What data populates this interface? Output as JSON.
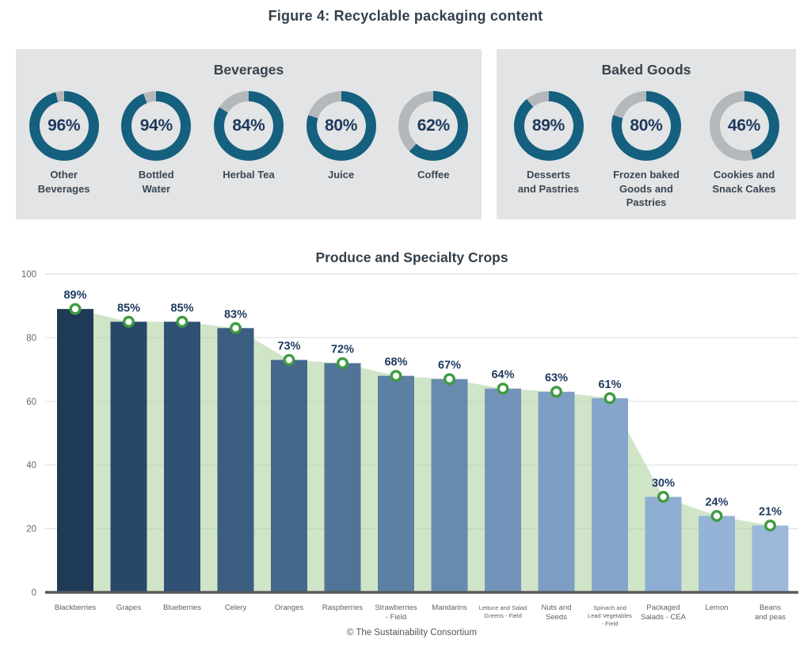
{
  "figure_title": "Figure 4: Recyclable packaging content",
  "footer": "© The Sustainability Consortium",
  "colors": {
    "accent_teal": "#14607E",
    "donut_remainder": "#B5B8BB",
    "panel_bg": "#E3E4E5",
    "navy_text": "#1D3A5E",
    "slate_text": "#37434D",
    "title_text": "#33404C",
    "axis_tick_text": "#64686C",
    "category_text": "#5C6165",
    "grid_line": "#E0E1E2",
    "axis_line": "#58595B",
    "area_green": "#A9CF9B",
    "marker_green": "#3F9B41",
    "footer_text": "#545759",
    "bar_colors": [
      "#1E3A56",
      "#28486A",
      "#2F5174",
      "#3A5D80",
      "#44688C",
      "#507497",
      "#5C80A3",
      "#678BAE",
      "#7394BA",
      "#7D9DC2",
      "#85A5CA",
      "#8EADD2",
      "#95B3D7",
      "#9BB8DB"
    ]
  },
  "chart_data": [
    {
      "type": "pie",
      "subtype": "donut-set",
      "title": "Beverages",
      "unit": "%",
      "items": [
        {
          "label": "Other Beverages",
          "label_lines": [
            "Other",
            "Beverages"
          ],
          "value": 96
        },
        {
          "label": "Bottled Water",
          "label_lines": [
            "Bottled",
            "Water"
          ],
          "value": 94
        },
        {
          "label": "Herbal Tea",
          "label_lines": [
            "Herbal Tea"
          ],
          "value": 84
        },
        {
          "label": "Juice",
          "label_lines": [
            "Juice"
          ],
          "value": 80
        },
        {
          "label": "Coffee",
          "label_lines": [
            "Coffee"
          ],
          "value": 62
        }
      ]
    },
    {
      "type": "pie",
      "subtype": "donut-set",
      "title": "Baked Goods",
      "unit": "%",
      "items": [
        {
          "label": "Desserts and Pastries",
          "label_lines": [
            "Desserts",
            "and Pastries"
          ],
          "value": 89
        },
        {
          "label": "Frozen baked Goods and Pastries",
          "label_lines": [
            "Frozen baked",
            "Goods and",
            "Pastries"
          ],
          "value": 80
        },
        {
          "label": "Cookies and Snack Cakes",
          "label_lines": [
            "Cookies and",
            "Snack Cakes"
          ],
          "value": 46
        }
      ]
    },
    {
      "type": "bar",
      "title": "Produce and Specialty Crops",
      "unit": "%",
      "categories": [
        "Blackberries",
        "Grapes",
        "Blueberries",
        "Celery",
        "Oranges",
        "Raspberries",
        "Strawberries - Field",
        "Mandarins",
        "Lettuce and Salad Greens - Field",
        "Nuts and Seeds",
        "Spinach and Lead Vegetables - Field",
        "Packaged Salads - CEA",
        "Lemon",
        "Beans and peas"
      ],
      "category_lines": [
        [
          "Blackberries"
        ],
        [
          "Grapes"
        ],
        [
          "Blueberries"
        ],
        [
          "Celery"
        ],
        [
          "Oranges"
        ],
        [
          "Raspberries"
        ],
        [
          "Strawberries",
          "- Field"
        ],
        [
          "Mandarins"
        ],
        [
          "Lettuce and Salad",
          "Greens - Field"
        ],
        [
          "Nuts and",
          "Seeds"
        ],
        [
          "Spinach and",
          "Lead Vegetables",
          "- Field"
        ],
        [
          "Packaged",
          "Salads - CEA"
        ],
        [
          "Lemon"
        ],
        [
          "Beans",
          "and peas"
        ]
      ],
      "small_category_flags": [
        false,
        false,
        false,
        false,
        false,
        false,
        false,
        false,
        true,
        false,
        true,
        false,
        false,
        false
      ],
      "values": [
        89,
        85,
        85,
        83,
        73,
        72,
        68,
        67,
        64,
        63,
        61,
        30,
        24,
        21
      ],
      "xlabel": "",
      "ylabel": "",
      "ylim": [
        0,
        100
      ],
      "yticks": [
        0,
        20,
        40,
        60,
        80,
        100
      ],
      "grid": true,
      "legend": false,
      "annotations": "percent data labels above each bar; white-filled green circle marker at each bar top; light green area series behind bars connecting values"
    }
  ]
}
